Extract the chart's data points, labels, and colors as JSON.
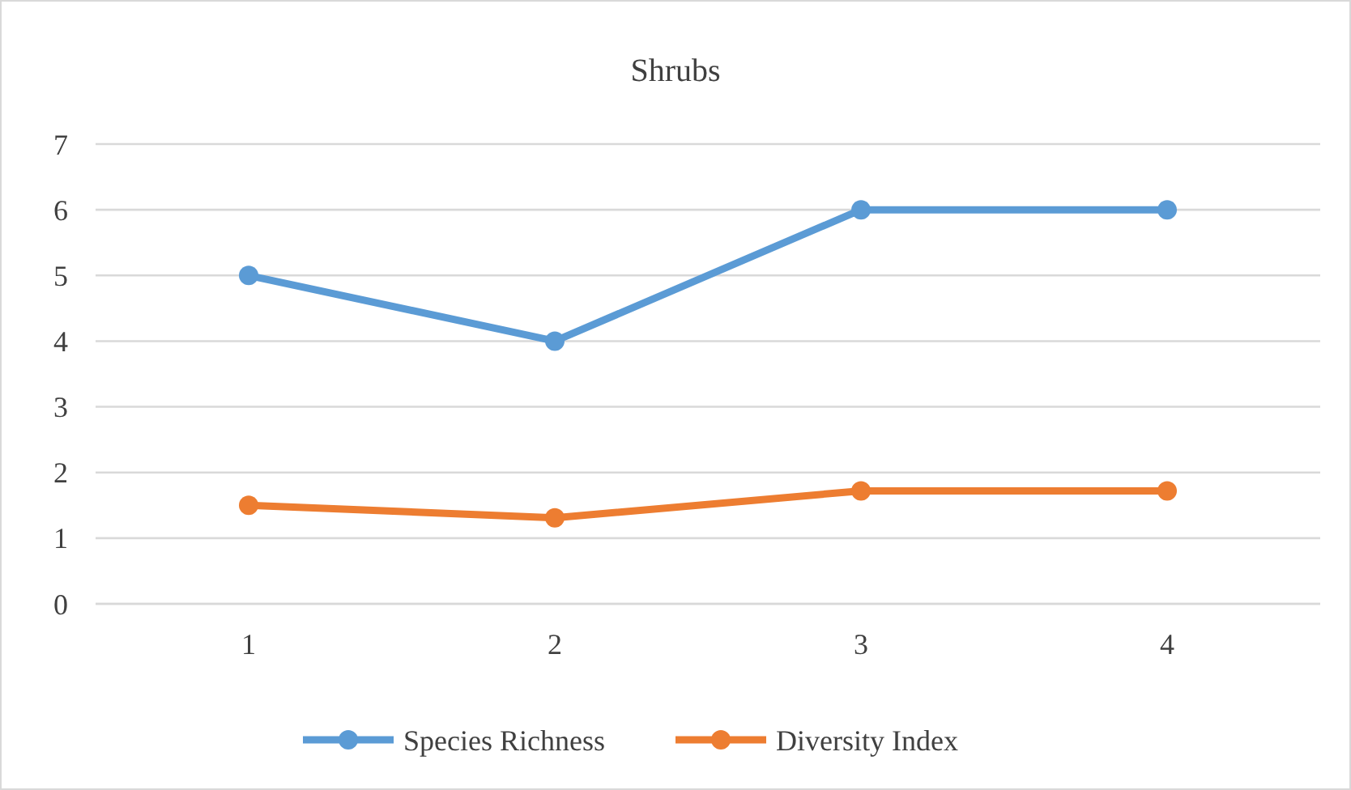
{
  "chart_data": {
    "type": "line",
    "title": "Shrubs",
    "categories": [
      "1",
      "2",
      "3",
      "4"
    ],
    "series": [
      {
        "name": "Species Richness",
        "color": "#5b9bd5",
        "values": [
          5,
          4,
          6,
          6
        ]
      },
      {
        "name": "Diversity Index",
        "color": "#ed7d31",
        "values": [
          1.5,
          1.31,
          1.72,
          1.72
        ]
      }
    ],
    "ylim": [
      0,
      7
    ],
    "yticks": [
      0,
      1,
      2,
      3,
      4,
      5,
      6,
      7
    ],
    "grid": "y",
    "legend": "bottom",
    "marker": "circle",
    "line_style": "solid"
  }
}
